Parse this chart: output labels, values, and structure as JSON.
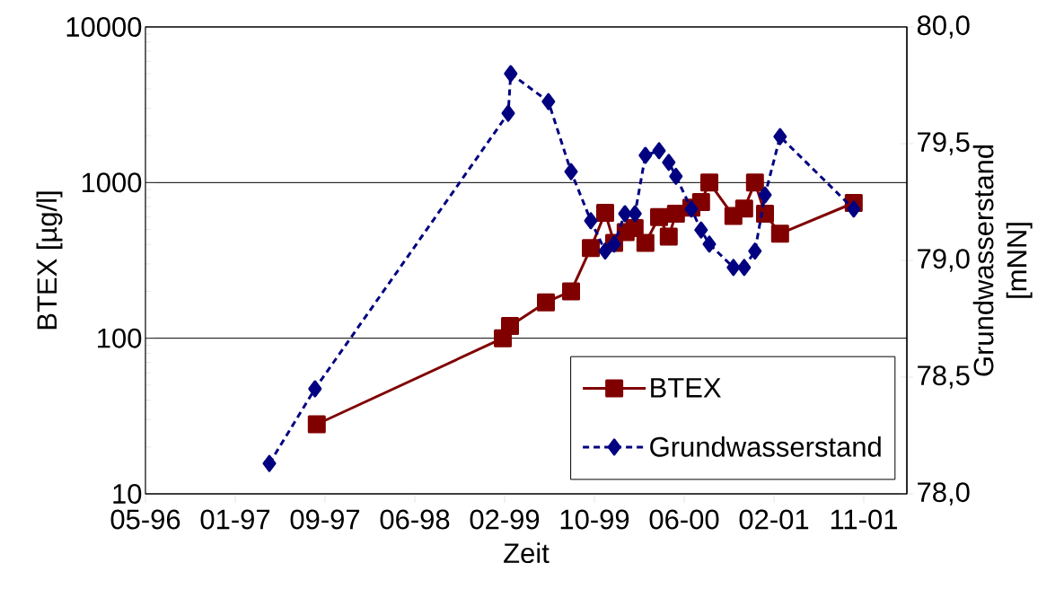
{
  "chart_data": {
    "type": "line",
    "xlabel": "Zeit",
    "ylabel": "BTEX [µg/l]",
    "y2label": "Grundwasserstand [mNN]",
    "xlim": [
      "1996-05-15",
      "2002-03-05"
    ],
    "xticks": [
      {
        "value": "1996-05-15",
        "label": "05-96"
      },
      {
        "value": "1997-01-20",
        "label": "01-97"
      },
      {
        "value": "1997-09-27",
        "label": "09-97"
      },
      {
        "value": "1998-06-04",
        "label": "06-98"
      },
      {
        "value": "1999-02-09",
        "label": "02-99"
      },
      {
        "value": "1999-10-17",
        "label": "10-99"
      },
      {
        "value": "2000-06-23",
        "label": "06-00"
      },
      {
        "value": "2001-02-28",
        "label": "02-01"
      },
      {
        "value": "2001-11-05",
        "label": "11-01"
      }
    ],
    "ylim": [
      10,
      10000
    ],
    "yticks": [
      10,
      100,
      1000,
      10000
    ],
    "log": "y",
    "y2lim": [
      78,
      80
    ],
    "y2ticks": [
      {
        "value": 78,
        "label": "78,0"
      },
      {
        "value": 78.5,
        "label": "78,5"
      },
      {
        "value": 79,
        "label": "79,0"
      },
      {
        "value": 79.5,
        "label": "79,5"
      },
      {
        "value": 80,
        "label": "80,0"
      }
    ],
    "grid": "y",
    "legend": "bottom right",
    "series": [
      {
        "name": "BTEX",
        "color": "#800000",
        "marker": "square",
        "line_style": "solid",
        "x": [
          "1997-09-04",
          "1999-02-04",
          "1999-02-24",
          "1999-06-04",
          "1999-08-13",
          "1999-10-07",
          "1999-11-16",
          "1999-12-11",
          "2000-01-12",
          "2000-02-06",
          "2000-03-07",
          "2000-04-14",
          "2000-05-11",
          "2000-05-31",
          "2000-07-13",
          "2000-08-09",
          "2000-09-01",
          "2000-11-07",
          "2000-12-07",
          "2001-01-06",
          "2001-02-03",
          "2001-03-17",
          "2001-10-08"
        ],
        "values": [
          28,
          100,
          120,
          170,
          200,
          380,
          640,
          410,
          480,
          510,
          410,
          600,
          450,
          630,
          690,
          750,
          1000,
          610,
          680,
          1000,
          630,
          470,
          740
        ]
      },
      {
        "name": "Grundwasserstand",
        "color": "#000080",
        "marker": "diamond",
        "line_style": "dashed",
        "axis": "y2",
        "x": [
          "1997-04-25",
          "1997-08-30",
          "1999-02-19",
          "1999-02-26",
          "1999-06-11",
          "1999-08-13",
          "1999-10-07",
          "1999-11-16",
          "1999-12-11",
          "2000-01-10",
          "2000-02-07",
          "2000-03-07",
          "2000-04-14",
          "2000-05-11",
          "2000-05-31",
          "2000-07-13",
          "2000-08-09",
          "2000-09-01",
          "2000-11-07",
          "2000-12-07",
          "2001-01-06",
          "2001-02-03",
          "2001-03-17",
          "2001-10-08"
        ],
        "values": [
          78.13,
          78.45,
          79.63,
          79.8,
          79.68,
          79.38,
          79.17,
          79.04,
          79.07,
          79.2,
          79.2,
          79.45,
          79.47,
          79.42,
          79.36,
          79.22,
          79.13,
          79.07,
          78.97,
          78.97,
          79.04,
          79.28,
          79.53,
          79.22
        ]
      }
    ]
  }
}
